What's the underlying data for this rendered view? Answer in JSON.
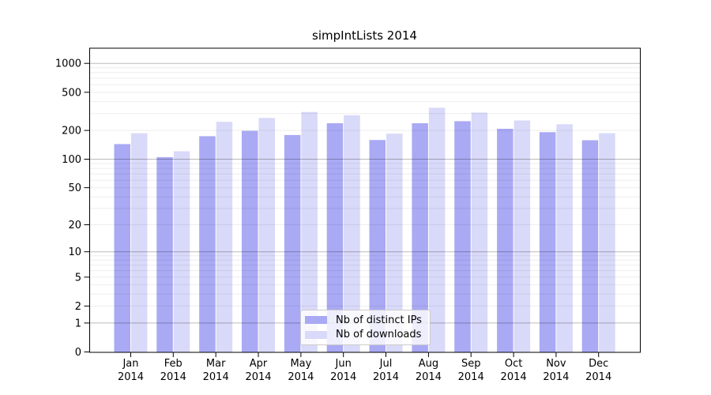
{
  "title": "simpIntLists 2014",
  "chart_data": {
    "type": "bar",
    "title": "simpIntLists 2014",
    "categories": [
      "Jan",
      "Feb",
      "Mar",
      "Apr",
      "May",
      "Jun",
      "Jul",
      "Aug",
      "Sep",
      "Oct",
      "Nov",
      "Dec"
    ],
    "x_tick_year": "2014",
    "series": [
      {
        "name": "Nb of distinct IPs",
        "color": "#a9a9f4",
        "values": [
          144,
          105,
          174,
          198,
          179,
          238,
          159,
          238,
          250,
          208,
          192,
          158
        ]
      },
      {
        "name": "Nb of downloads",
        "color": "#d9d9f9",
        "values": [
          187,
          121,
          246,
          270,
          312,
          288,
          185,
          345,
          307,
          254,
          232,
          187
        ]
      }
    ],
    "yscale": "log10(value+1)",
    "yticks": [
      0,
      1,
      2,
      5,
      10,
      20,
      50,
      100,
      200,
      500,
      1000
    ],
    "ylim": [
      0,
      1480
    ],
    "grid": true,
    "grid_major_at": [
      1,
      10,
      100,
      1000
    ],
    "legend_position": "inside-bottom-center",
    "axis_color": "#000000",
    "background_color": "#ffffff"
  }
}
